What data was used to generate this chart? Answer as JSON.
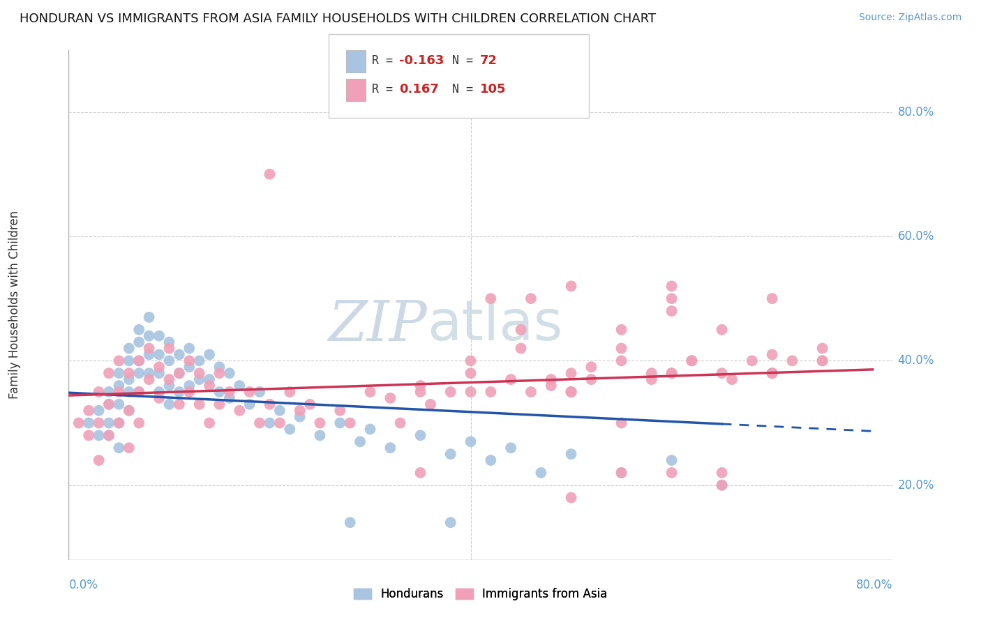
{
  "title": "HONDURAN VS IMMIGRANTS FROM ASIA FAMILY HOUSEHOLDS WITH CHILDREN CORRELATION CHART",
  "source": "Source: ZipAtlas.com",
  "ylabel": "Family Households with Children",
  "ytick_labels": [
    "20.0%",
    "40.0%",
    "60.0%",
    "80.0%"
  ],
  "ytick_vals": [
    0.2,
    0.4,
    0.6,
    0.8
  ],
  "xlim": [
    0.0,
    0.82
  ],
  "ylim": [
    0.08,
    0.9
  ],
  "blue_scatter": "#a8c4e0",
  "blue_line": "#2255aa",
  "pink_scatter": "#f0a0b8",
  "pink_line": "#cc3355",
  "bg_color": "#ffffff",
  "grid_color": "#cccccc",
  "axis_label_color": "#5599cc",
  "title_color": "#111111",
  "hondurans_x": [
    0.02,
    0.03,
    0.03,
    0.04,
    0.04,
    0.04,
    0.04,
    0.05,
    0.05,
    0.05,
    0.05,
    0.05,
    0.06,
    0.06,
    0.06,
    0.06,
    0.06,
    0.07,
    0.07,
    0.07,
    0.07,
    0.07,
    0.08,
    0.08,
    0.08,
    0.08,
    0.09,
    0.09,
    0.09,
    0.09,
    0.1,
    0.1,
    0.1,
    0.1,
    0.11,
    0.11,
    0.11,
    0.12,
    0.12,
    0.12,
    0.13,
    0.13,
    0.14,
    0.14,
    0.15,
    0.15,
    0.16,
    0.16,
    0.17,
    0.18,
    0.19,
    0.2,
    0.21,
    0.22,
    0.23,
    0.25,
    0.27,
    0.29,
    0.3,
    0.32,
    0.35,
    0.38,
    0.4,
    0.42,
    0.44,
    0.47,
    0.5,
    0.55,
    0.6,
    0.65,
    0.38,
    0.28
  ],
  "hondurans_y": [
    0.3,
    0.32,
    0.28,
    0.35,
    0.33,
    0.3,
    0.28,
    0.38,
    0.36,
    0.33,
    0.3,
    0.26,
    0.42,
    0.4,
    0.37,
    0.35,
    0.32,
    0.45,
    0.43,
    0.4,
    0.38,
    0.35,
    0.47,
    0.44,
    0.41,
    0.38,
    0.44,
    0.41,
    0.38,
    0.35,
    0.43,
    0.4,
    0.36,
    0.33,
    0.41,
    0.38,
    0.35,
    0.42,
    0.39,
    0.36,
    0.4,
    0.37,
    0.41,
    0.37,
    0.39,
    0.35,
    0.38,
    0.34,
    0.36,
    0.33,
    0.35,
    0.3,
    0.32,
    0.29,
    0.31,
    0.28,
    0.3,
    0.27,
    0.29,
    0.26,
    0.28,
    0.25,
    0.27,
    0.24,
    0.26,
    0.22,
    0.25,
    0.22,
    0.24,
    0.2,
    0.14,
    0.14
  ],
  "asia_x": [
    0.01,
    0.02,
    0.02,
    0.03,
    0.03,
    0.03,
    0.04,
    0.04,
    0.04,
    0.05,
    0.05,
    0.05,
    0.06,
    0.06,
    0.06,
    0.07,
    0.07,
    0.07,
    0.08,
    0.08,
    0.09,
    0.09,
    0.1,
    0.1,
    0.11,
    0.11,
    0.12,
    0.12,
    0.13,
    0.13,
    0.14,
    0.14,
    0.15,
    0.15,
    0.16,
    0.17,
    0.18,
    0.19,
    0.2,
    0.21,
    0.22,
    0.23,
    0.24,
    0.25,
    0.27,
    0.28,
    0.3,
    0.32,
    0.33,
    0.35,
    0.36,
    0.38,
    0.4,
    0.42,
    0.44,
    0.46,
    0.48,
    0.5,
    0.52,
    0.55,
    0.58,
    0.6,
    0.62,
    0.65,
    0.68,
    0.7,
    0.72,
    0.75,
    0.35,
    0.2,
    0.42,
    0.46,
    0.5,
    0.55,
    0.6,
    0.65,
    0.7,
    0.5,
    0.6,
    0.65,
    0.7,
    0.75,
    0.4,
    0.45,
    0.5,
    0.55,
    0.6,
    0.35,
    0.45,
    0.5,
    0.55,
    0.6,
    0.65,
    0.7,
    0.75,
    0.6,
    0.5,
    0.55,
    0.4,
    0.48,
    0.52,
    0.58,
    0.62,
    0.66,
    0.7
  ],
  "asia_y": [
    0.3,
    0.32,
    0.28,
    0.35,
    0.3,
    0.24,
    0.38,
    0.33,
    0.28,
    0.4,
    0.35,
    0.3,
    0.38,
    0.32,
    0.26,
    0.4,
    0.35,
    0.3,
    0.42,
    0.37,
    0.39,
    0.34,
    0.42,
    0.37,
    0.38,
    0.33,
    0.4,
    0.35,
    0.38,
    0.33,
    0.36,
    0.3,
    0.38,
    0.33,
    0.35,
    0.32,
    0.35,
    0.3,
    0.33,
    0.3,
    0.35,
    0.32,
    0.33,
    0.3,
    0.32,
    0.3,
    0.35,
    0.34,
    0.3,
    0.36,
    0.33,
    0.35,
    0.38,
    0.35,
    0.37,
    0.35,
    0.37,
    0.35,
    0.37,
    0.4,
    0.37,
    0.38,
    0.4,
    0.38,
    0.4,
    0.38,
    0.4,
    0.42,
    0.35,
    0.7,
    0.5,
    0.5,
    0.18,
    0.22,
    0.22,
    0.2,
    0.38,
    0.52,
    0.48,
    0.22,
    0.38,
    0.4,
    0.4,
    0.45,
    0.35,
    0.3,
    0.38,
    0.22,
    0.42,
    0.35,
    0.45,
    0.5,
    0.45,
    0.5,
    0.4,
    0.52,
    0.38,
    0.42,
    0.35,
    0.36,
    0.39,
    0.38,
    0.4,
    0.37,
    0.41
  ]
}
